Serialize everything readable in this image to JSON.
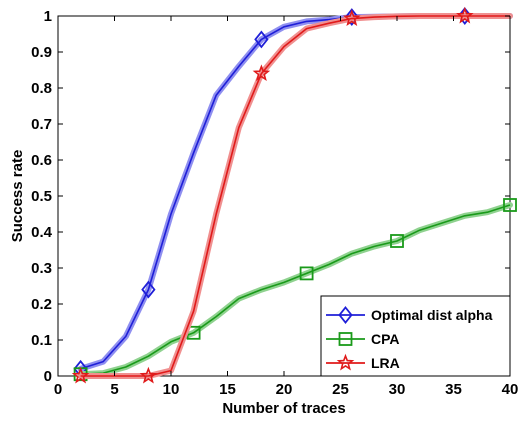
{
  "chart_data": {
    "type": "line",
    "title": "",
    "xlabel": "Number of traces",
    "ylabel": "Success rate",
    "xlim": [
      0,
      40
    ],
    "ylim": [
      0,
      1
    ],
    "xticks": [
      0,
      5,
      10,
      15,
      20,
      25,
      30,
      35,
      40
    ],
    "yticks": [
      0,
      0.1,
      0.2,
      0.3,
      0.4,
      0.5,
      0.6,
      0.7,
      0.8,
      0.9,
      1
    ],
    "grid": false,
    "legend_position": "bottom-right",
    "series": [
      {
        "name": "Optimal dist alpha",
        "color": "#1f1fd8",
        "band_color": "#8f8ff0",
        "marker": "diamond",
        "x": [
          2,
          4,
          6,
          8,
          10,
          12,
          14,
          16,
          18,
          20,
          22,
          24,
          26,
          28,
          30,
          32,
          34,
          36,
          38,
          40
        ],
        "y": [
          0.02,
          0.04,
          0.11,
          0.24,
          0.45,
          0.62,
          0.78,
          0.86,
          0.935,
          0.97,
          0.985,
          0.99,
          0.997,
          0.998,
          0.999,
          1.0,
          1.0,
          1.0,
          1.0,
          1.0
        ],
        "marker_x": [
          2,
          8,
          18,
          26,
          36
        ],
        "marker_y": [
          0.02,
          0.24,
          0.935,
          0.997,
          1.0
        ]
      },
      {
        "name": "CPA",
        "color": "#1a9a1a",
        "band_color": "#8fd28f",
        "marker": "square",
        "x": [
          2,
          4,
          6,
          8,
          10,
          12,
          14,
          16,
          18,
          20,
          22,
          24,
          26,
          28,
          30,
          32,
          34,
          36,
          38,
          40
        ],
        "y": [
          0.005,
          0.008,
          0.025,
          0.055,
          0.095,
          0.12,
          0.165,
          0.215,
          0.24,
          0.26,
          0.285,
          0.31,
          0.34,
          0.36,
          0.375,
          0.405,
          0.425,
          0.445,
          0.455,
          0.475
        ],
        "marker_x": [
          2,
          12,
          22,
          30,
          40
        ],
        "marker_y": [
          0.005,
          0.12,
          0.285,
          0.375,
          0.475
        ]
      },
      {
        "name": "LRA",
        "color": "#e01a1a",
        "band_color": "#f09090",
        "marker": "star",
        "x": [
          2,
          4,
          6,
          8,
          10,
          12,
          14,
          16,
          18,
          20,
          22,
          24,
          26,
          28,
          30,
          32,
          34,
          36,
          38,
          40
        ],
        "y": [
          0.0,
          0.0,
          0.0,
          0.0,
          0.015,
          0.18,
          0.45,
          0.69,
          0.84,
          0.915,
          0.965,
          0.98,
          0.993,
          0.997,
          0.999,
          1.0,
          1.0,
          1.0,
          1.0,
          1.0
        ],
        "marker_x": [
          2,
          8,
          18,
          26,
          36
        ],
        "marker_y": [
          0.0,
          0.0,
          0.84,
          0.993,
          1.0
        ]
      }
    ]
  }
}
